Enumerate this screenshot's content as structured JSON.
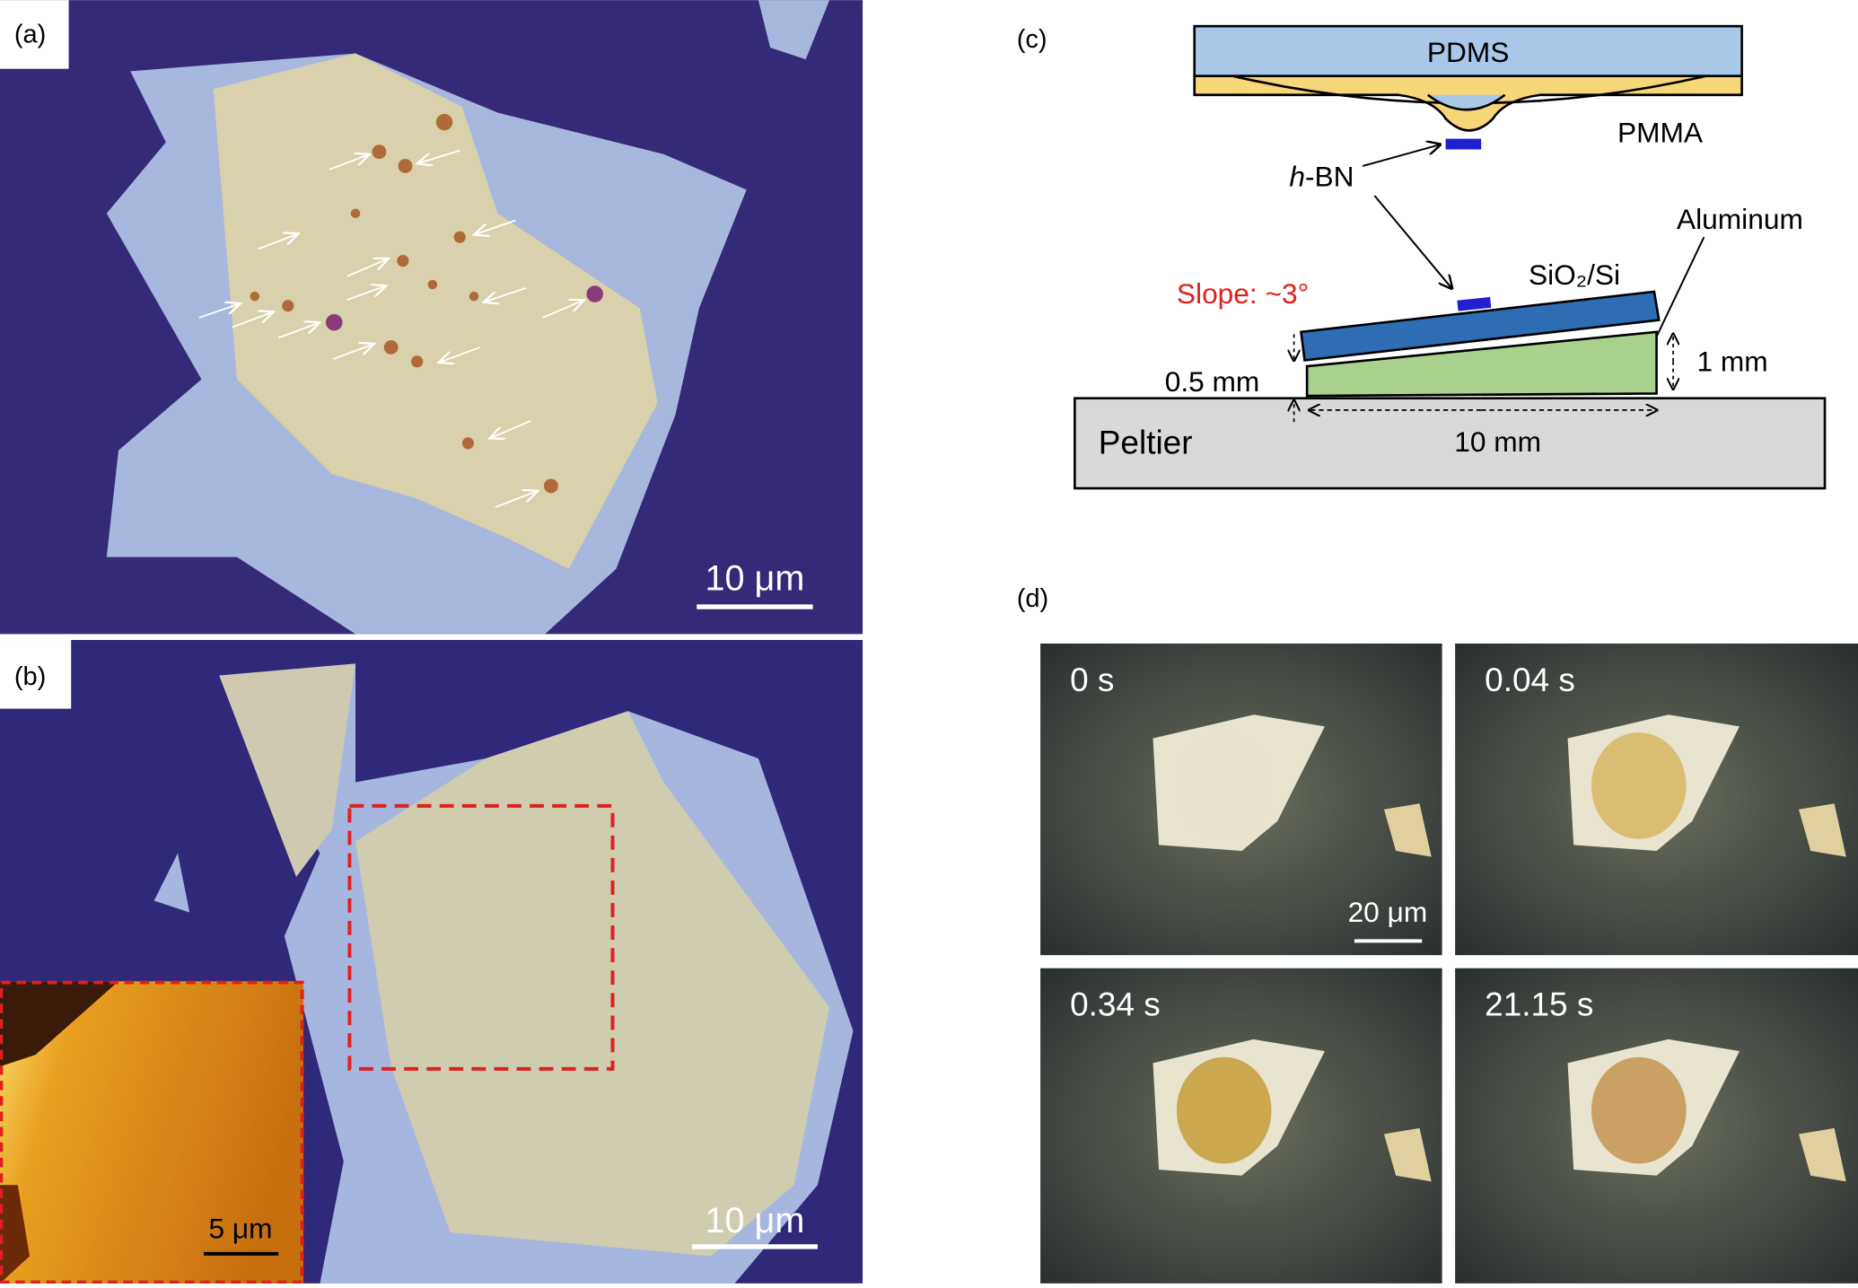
{
  "panel_a": {
    "label": "(a)",
    "scale_bar": "10 μm"
  },
  "panel_b": {
    "label": "(b)",
    "scale_bar": "10 μm",
    "inset_scale_bar": "5 μm"
  },
  "panel_c": {
    "label": "(c)",
    "pdms": "PDMS",
    "pmma": "PMMA",
    "hbn_italic": "h",
    "hbn_rest": "-BN",
    "aluminum": "Aluminum",
    "substrate": "SiO₂/Si",
    "slope": "Slope: ~3°",
    "gap": "0.5 mm",
    "height": "1 mm",
    "length": "10 mm",
    "peltier": "Peltier"
  },
  "panel_d": {
    "label": "(d)",
    "frames": [
      "0 s",
      "0.04 s",
      "0.34 s",
      "21.15 s"
    ],
    "scale_bar": "20 μm"
  }
}
